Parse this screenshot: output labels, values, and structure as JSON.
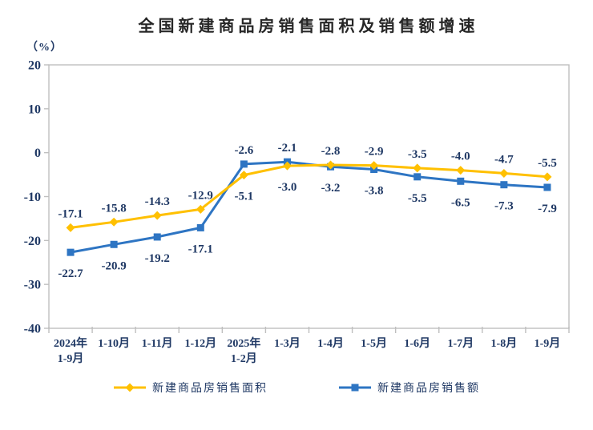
{
  "page": {
    "background": "#ffffff"
  },
  "chart_data": {
    "type": "line",
    "title": "全国新建商品房销售面积及销售额增速",
    "unit_label": "（%）",
    "categories": [
      [
        "2024年",
        "1-9月"
      ],
      [
        "1-10月"
      ],
      [
        "1-11月"
      ],
      [
        "1-12月"
      ],
      [
        "2025年",
        "1-2月"
      ],
      [
        "1-3月"
      ],
      [
        "1-4月"
      ],
      [
        "1-5月"
      ],
      [
        "1-6月"
      ],
      [
        "1-7月"
      ],
      [
        "1-8月"
      ],
      [
        "1-9月"
      ]
    ],
    "series": [
      {
        "name": "新建商品房销售面积",
        "marker": "diamond",
        "color": "#FFC000",
        "values": [
          -17.1,
          -15.8,
          -14.3,
          -12.9,
          -5.1,
          -3.0,
          -2.8,
          -2.9,
          -3.5,
          -4.0,
          -4.7,
          -5.5
        ]
      },
      {
        "name": "新建商品房销售额",
        "marker": "square",
        "color": "#2E75C3",
        "values": [
          -22.7,
          -20.9,
          -19.2,
          -17.1,
          -2.6,
          -2.1,
          -3.2,
          -3.8,
          -5.5,
          -6.5,
          -7.3,
          -7.9
        ]
      }
    ],
    "ylim": [
      -40,
      20
    ],
    "yticks": [
      20,
      10,
      0,
      -10,
      -20,
      -30,
      -40
    ],
    "grid": false,
    "legend_position": "bottom",
    "value_decimals": 1,
    "colors": {
      "label_text": "#1F3864",
      "axis_line": "#BFBFBF",
      "title_text": "#262626"
    }
  }
}
